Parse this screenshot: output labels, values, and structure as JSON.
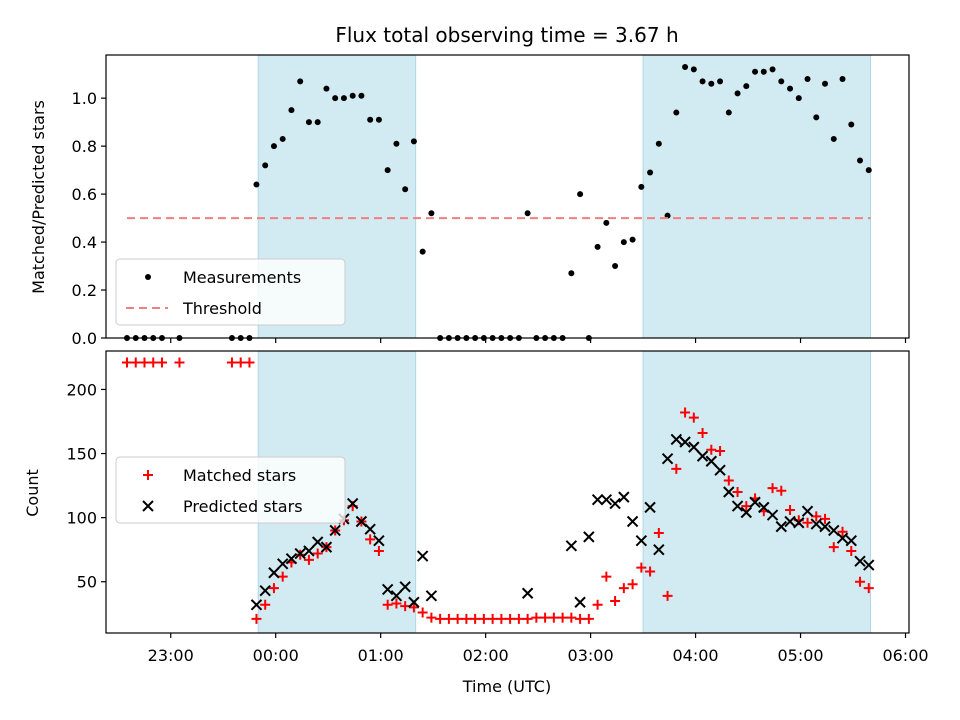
{
  "chart_data": {
    "title": "Flux total observing time = 3.67 h",
    "xlabel": "Time (UTC)",
    "x_ticks": [
      "23:00",
      "00:00",
      "01:00",
      "02:00",
      "03:00",
      "04:00",
      "05:00",
      "06:00"
    ],
    "xlim": [
      "22:23",
      "06:02"
    ],
    "shaded_intervals": [
      [
        "23:50",
        "01:20"
      ],
      [
        "03:30",
        "05:40"
      ]
    ],
    "shade_color": "#add8e6",
    "panels": [
      {
        "type": "scatter",
        "ylabel": "Matched/Predicted stars",
        "ylim": [
          0,
          1.18
        ],
        "y_ticks": [
          "0.0",
          "0.2",
          "0.4",
          "0.6",
          "0.8",
          "1.0"
        ],
        "legend_position": "lower-left",
        "series": [
          {
            "name": "Measurements",
            "marker": "dot",
            "color": "#000000",
            "points": [
              [
                "22:35",
                0.0
              ],
              [
                "22:40",
                0.0
              ],
              [
                "22:45",
                0.0
              ],
              [
                "22:50",
                0.0
              ],
              [
                "22:55",
                0.0
              ],
              [
                "23:05",
                0.0
              ],
              [
                "23:35",
                0.0
              ],
              [
                "23:40",
                0.0
              ],
              [
                "23:45",
                0.0
              ],
              [
                "23:49",
                0.64
              ],
              [
                "23:54",
                0.72
              ],
              [
                "23:59",
                0.8
              ],
              [
                "00:04",
                0.83
              ],
              [
                "00:09",
                0.95
              ],
              [
                "00:14",
                1.07
              ],
              [
                "00:19",
                0.9
              ],
              [
                "00:24",
                0.9
              ],
              [
                "00:29",
                1.04
              ],
              [
                "00:34",
                1.0
              ],
              [
                "00:39",
                1.0
              ],
              [
                "00:44",
                1.01
              ],
              [
                "00:49",
                1.01
              ],
              [
                "00:54",
                0.91
              ],
              [
                "00:59",
                0.91
              ],
              [
                "01:04",
                0.7
              ],
              [
                "01:09",
                0.81
              ],
              [
                "01:14",
                0.62
              ],
              [
                "01:19",
                0.82
              ],
              [
                "01:24",
                0.36
              ],
              [
                "01:29",
                0.52
              ],
              [
                "01:34",
                0.0
              ],
              [
                "01:39",
                0.0
              ],
              [
                "01:44",
                0.0
              ],
              [
                "01:49",
                0.0
              ],
              [
                "01:54",
                0.0
              ],
              [
                "01:59",
                0.0
              ],
              [
                "02:04",
                0.0
              ],
              [
                "02:09",
                0.0
              ],
              [
                "02:14",
                0.0
              ],
              [
                "02:19",
                0.0
              ],
              [
                "02:24",
                0.52
              ],
              [
                "02:29",
                0.0
              ],
              [
                "02:34",
                0.0
              ],
              [
                "02:39",
                0.0
              ],
              [
                "02:44",
                0.0
              ],
              [
                "02:49",
                0.27
              ],
              [
                "02:54",
                0.6
              ],
              [
                "02:59",
                0.0
              ],
              [
                "03:04",
                0.38
              ],
              [
                "03:09",
                0.48
              ],
              [
                "03:14",
                0.3
              ],
              [
                "03:19",
                0.4
              ],
              [
                "03:24",
                0.41
              ],
              [
                "03:29",
                0.63
              ],
              [
                "03:34",
                0.69
              ],
              [
                "03:39",
                0.81
              ],
              [
                "03:44",
                0.51
              ],
              [
                "03:49",
                0.94
              ],
              [
                "03:54",
                1.13
              ],
              [
                "03:59",
                1.12
              ],
              [
                "04:04",
                1.07
              ],
              [
                "04:09",
                1.06
              ],
              [
                "04:14",
                1.07
              ],
              [
                "04:19",
                0.94
              ],
              [
                "04:24",
                1.02
              ],
              [
                "04:29",
                1.05
              ],
              [
                "04:34",
                1.11
              ],
              [
                "04:39",
                1.11
              ],
              [
                "04:44",
                1.12
              ],
              [
                "04:49",
                1.07
              ],
              [
                "04:54",
                1.04
              ],
              [
                "04:59",
                1.0
              ],
              [
                "05:04",
                1.08
              ],
              [
                "05:09",
                0.92
              ],
              [
                "05:14",
                1.06
              ],
              [
                "05:19",
                0.83
              ],
              [
                "05:24",
                1.08
              ],
              [
                "05:29",
                0.89
              ],
              [
                "05:34",
                0.74
              ],
              [
                "05:39",
                0.7
              ]
            ]
          },
          {
            "name": "Threshold",
            "type": "line",
            "style": "dashed",
            "color": "#f08080",
            "x_range": [
              "22:35",
              "05:40"
            ],
            "value": 0.5
          }
        ]
      },
      {
        "type": "scatter",
        "ylabel": "Count",
        "ylim": [
          10,
          230
        ],
        "y_ticks": [
          "50",
          "100",
          "150",
          "200"
        ],
        "legend_position": "center-left",
        "series": [
          {
            "name": "Matched stars",
            "marker": "plus",
            "color": "#ff0000",
            "points": [
              [
                "22:35",
                221
              ],
              [
                "22:40",
                221
              ],
              [
                "22:45",
                221
              ],
              [
                "22:50",
                221
              ],
              [
                "22:55",
                221
              ],
              [
                "23:05",
                221
              ],
              [
                "23:35",
                221
              ],
              [
                "23:40",
                221
              ],
              [
                "23:45",
                221
              ],
              [
                "23:49",
                21
              ],
              [
                "23:54",
                32
              ],
              [
                "23:59",
                45
              ],
              [
                "00:04",
                54
              ],
              [
                "00:09",
                65
              ],
              [
                "00:14",
                71
              ],
              [
                "00:19",
                67
              ],
              [
                "00:24",
                72
              ],
              [
                "00:29",
                77
              ],
              [
                "00:34",
                90
              ],
              [
                "00:39",
                98
              ],
              [
                "00:44",
                109
              ],
              [
                "00:49",
                97
              ],
              [
                "00:54",
                83
              ],
              [
                "00:59",
                74
              ],
              [
                "01:04",
                32
              ],
              [
                "01:09",
                33
              ],
              [
                "01:14",
                31
              ],
              [
                "01:19",
                30
              ],
              [
                "01:24",
                26
              ],
              [
                "01:29",
                22
              ],
              [
                "01:34",
                21
              ],
              [
                "01:39",
                21
              ],
              [
                "01:44",
                21
              ],
              [
                "01:49",
                21
              ],
              [
                "01:54",
                21
              ],
              [
                "01:59",
                21
              ],
              [
                "02:04",
                21
              ],
              [
                "02:09",
                21
              ],
              [
                "02:14",
                21
              ],
              [
                "02:19",
                21
              ],
              [
                "02:24",
                21
              ],
              [
                "02:29",
                22
              ],
              [
                "02:34",
                22
              ],
              [
                "02:39",
                22
              ],
              [
                "02:44",
                22
              ],
              [
                "02:49",
                22
              ],
              [
                "02:54",
                21
              ],
              [
                "02:59",
                21
              ],
              [
                "03:04",
                32
              ],
              [
                "03:09",
                54
              ],
              [
                "03:14",
                35
              ],
              [
                "03:19",
                45
              ],
              [
                "03:24",
                48
              ],
              [
                "03:29",
                61
              ],
              [
                "03:34",
                58
              ],
              [
                "03:39",
                88
              ],
              [
                "03:44",
                39
              ],
              [
                "03:49",
                138
              ],
              [
                "03:54",
                182
              ],
              [
                "03:59",
                178
              ],
              [
                "04:04",
                166
              ],
              [
                "04:09",
                153
              ],
              [
                "04:14",
                152
              ],
              [
                "04:19",
                129
              ],
              [
                "04:24",
                120
              ],
              [
                "04:29",
                109
              ],
              [
                "04:34",
                115
              ],
              [
                "04:39",
                105
              ],
              [
                "04:44",
                123
              ],
              [
                "04:49",
                121
              ],
              [
                "04:54",
                106
              ],
              [
                "04:59",
                98
              ],
              [
                "05:04",
                96
              ],
              [
                "05:09",
                101
              ],
              [
                "05:14",
                99
              ],
              [
                "05:19",
                77
              ],
              [
                "05:24",
                89
              ],
              [
                "05:29",
                74
              ],
              [
                "05:34",
                50
              ],
              [
                "05:39",
                45
              ]
            ]
          },
          {
            "name": "Predicted stars",
            "marker": "x",
            "color": "#000000",
            "points": [
              [
                "23:49",
                32
              ],
              [
                "23:54",
                43
              ],
              [
                "23:59",
                57
              ],
              [
                "00:04",
                64
              ],
              [
                "00:09",
                68
              ],
              [
                "00:14",
                72
              ],
              [
                "00:19",
                74
              ],
              [
                "00:24",
                81
              ],
              [
                "00:29",
                77
              ],
              [
                "00:34",
                90
              ],
              [
                "00:39",
                99
              ],
              [
                "00:44",
                111
              ],
              [
                "00:49",
                97
              ],
              [
                "00:54",
                91
              ],
              [
                "00:59",
                82
              ],
              [
                "01:04",
                44
              ],
              [
                "01:09",
                39
              ],
              [
                "01:14",
                46
              ],
              [
                "01:19",
                34
              ],
              [
                "01:24",
                70
              ],
              [
                "01:29",
                39
              ],
              [
                "02:24",
                41
              ],
              [
                "02:49",
                78
              ],
              [
                "02:54",
                34
              ],
              [
                "02:59",
                85
              ],
              [
                "03:04",
                114
              ],
              [
                "03:09",
                114
              ],
              [
                "03:14",
                111
              ],
              [
                "03:19",
                116
              ],
              [
                "03:24",
                97
              ],
              [
                "03:29",
                82
              ],
              [
                "03:34",
                108
              ],
              [
                "03:39",
                75
              ],
              [
                "03:44",
                146
              ],
              [
                "03:49",
                161
              ],
              [
                "03:54",
                159
              ],
              [
                "03:59",
                155
              ],
              [
                "04:04",
                148
              ],
              [
                "04:09",
                144
              ],
              [
                "04:14",
                137
              ],
              [
                "04:19",
                120
              ],
              [
                "04:24",
                109
              ],
              [
                "04:29",
                104
              ],
              [
                "04:34",
                112
              ],
              [
                "04:39",
                108
              ],
              [
                "04:44",
                102
              ],
              [
                "04:49",
                93
              ],
              [
                "04:54",
                97
              ],
              [
                "04:59",
                96
              ],
              [
                "05:04",
                105
              ],
              [
                "05:09",
                95
              ],
              [
                "05:14",
                93
              ],
              [
                "05:19",
                90
              ],
              [
                "05:24",
                84
              ],
              [
                "05:29",
                82
              ],
              [
                "05:34",
                66
              ],
              [
                "05:39",
                63
              ]
            ]
          }
        ]
      }
    ]
  }
}
